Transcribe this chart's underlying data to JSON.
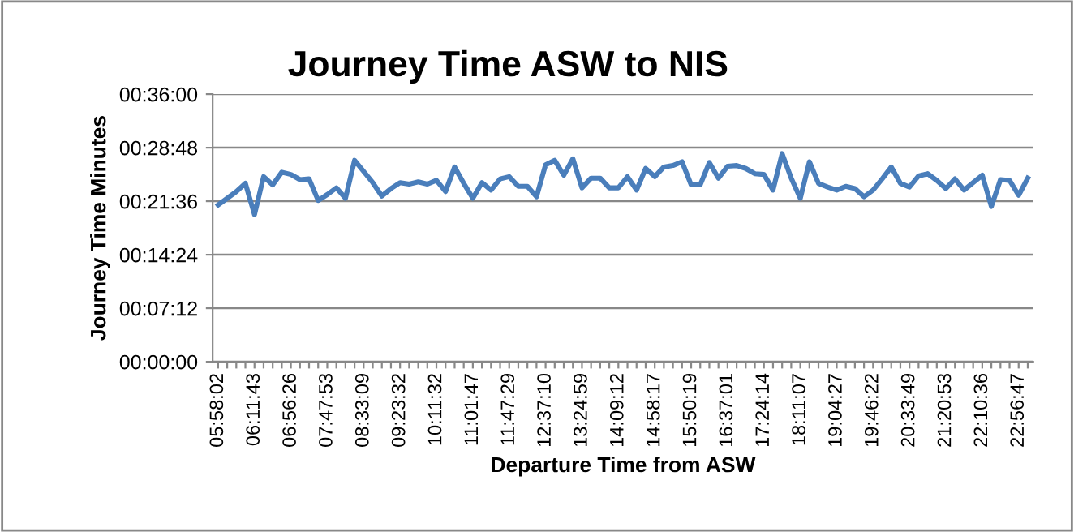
{
  "chart_data": {
    "type": "line",
    "title": "Journey Time ASW to NIS",
    "xlabel": "Departure Time from ASW",
    "ylabel": "Journey Time Minutes",
    "categories": [
      "05:58:02",
      null,
      null,
      null,
      "06:11:43",
      null,
      null,
      null,
      "06:56:26",
      null,
      null,
      null,
      "07:47:53",
      null,
      null,
      null,
      "08:33:09",
      null,
      null,
      null,
      "09:23:32",
      null,
      null,
      null,
      "10:11:32",
      null,
      null,
      null,
      "11:01:47",
      null,
      null,
      null,
      "11:47:29",
      null,
      null,
      null,
      "12:37:10",
      null,
      null,
      null,
      "13:24:59",
      null,
      null,
      null,
      "14:09:12",
      null,
      null,
      null,
      "14:58:17",
      null,
      null,
      null,
      "15:50:19",
      null,
      null,
      null,
      "16:37:01",
      null,
      null,
      null,
      "17:24:14",
      null,
      null,
      null,
      "18:11:07",
      null,
      null,
      null,
      "19:04:27",
      null,
      null,
      null,
      "19:46:22",
      null,
      null,
      null,
      "20:33:49",
      null,
      null,
      null,
      "21:20:53",
      null,
      null,
      null,
      "22:10:36",
      null,
      null,
      null,
      "22:56:47",
      null
    ],
    "series": [
      {
        "color": "#4a7ebb",
        "values": [
          21.1,
          22.0,
          22.9,
          24.0,
          19.8,
          24.9,
          23.8,
          25.5,
          25.2,
          24.5,
          24.6,
          21.7,
          22.5,
          23.4,
          22.0,
          27.1,
          25.6,
          24.1,
          22.3,
          23.3,
          24.1,
          23.9,
          24.2,
          23.9,
          24.4,
          22.9,
          26.2,
          24.0,
          22.0,
          24.1,
          23.1,
          24.6,
          24.9,
          23.6,
          23.6,
          22.2,
          26.5,
          27.1,
          25.1,
          27.3,
          23.4,
          24.7,
          24.7,
          23.4,
          23.4,
          24.9,
          23.1,
          26.0,
          24.9,
          26.2,
          26.4,
          26.9,
          23.8,
          23.8,
          26.8,
          24.7,
          26.3,
          26.4,
          26.0,
          25.3,
          25.2,
          23.1,
          28.0,
          24.7,
          22.0,
          26.9,
          24.0,
          23.5,
          23.1,
          23.6,
          23.3,
          22.2,
          23.1,
          24.6,
          26.2,
          24.0,
          23.5,
          25.0,
          25.3,
          24.4,
          23.3,
          24.6,
          23.1,
          24.1,
          25.1,
          20.9,
          24.5,
          24.4,
          22.4,
          24.7
        ]
      }
    ],
    "ylim": [
      0,
      36
    ],
    "yticks": [
      {
        "value": 0,
        "label": "00:00:00"
      },
      {
        "value": 7.2,
        "label": "00:07:12"
      },
      {
        "value": 14.4,
        "label": "00:14:24"
      },
      {
        "value": 21.6,
        "label": "00:21:36"
      },
      {
        "value": 28.8,
        "label": "00:28:48"
      },
      {
        "value": 36,
        "label": "00:36:00"
      }
    ],
    "grid": "y",
    "marker": "none",
    "line_style": "solid"
  }
}
